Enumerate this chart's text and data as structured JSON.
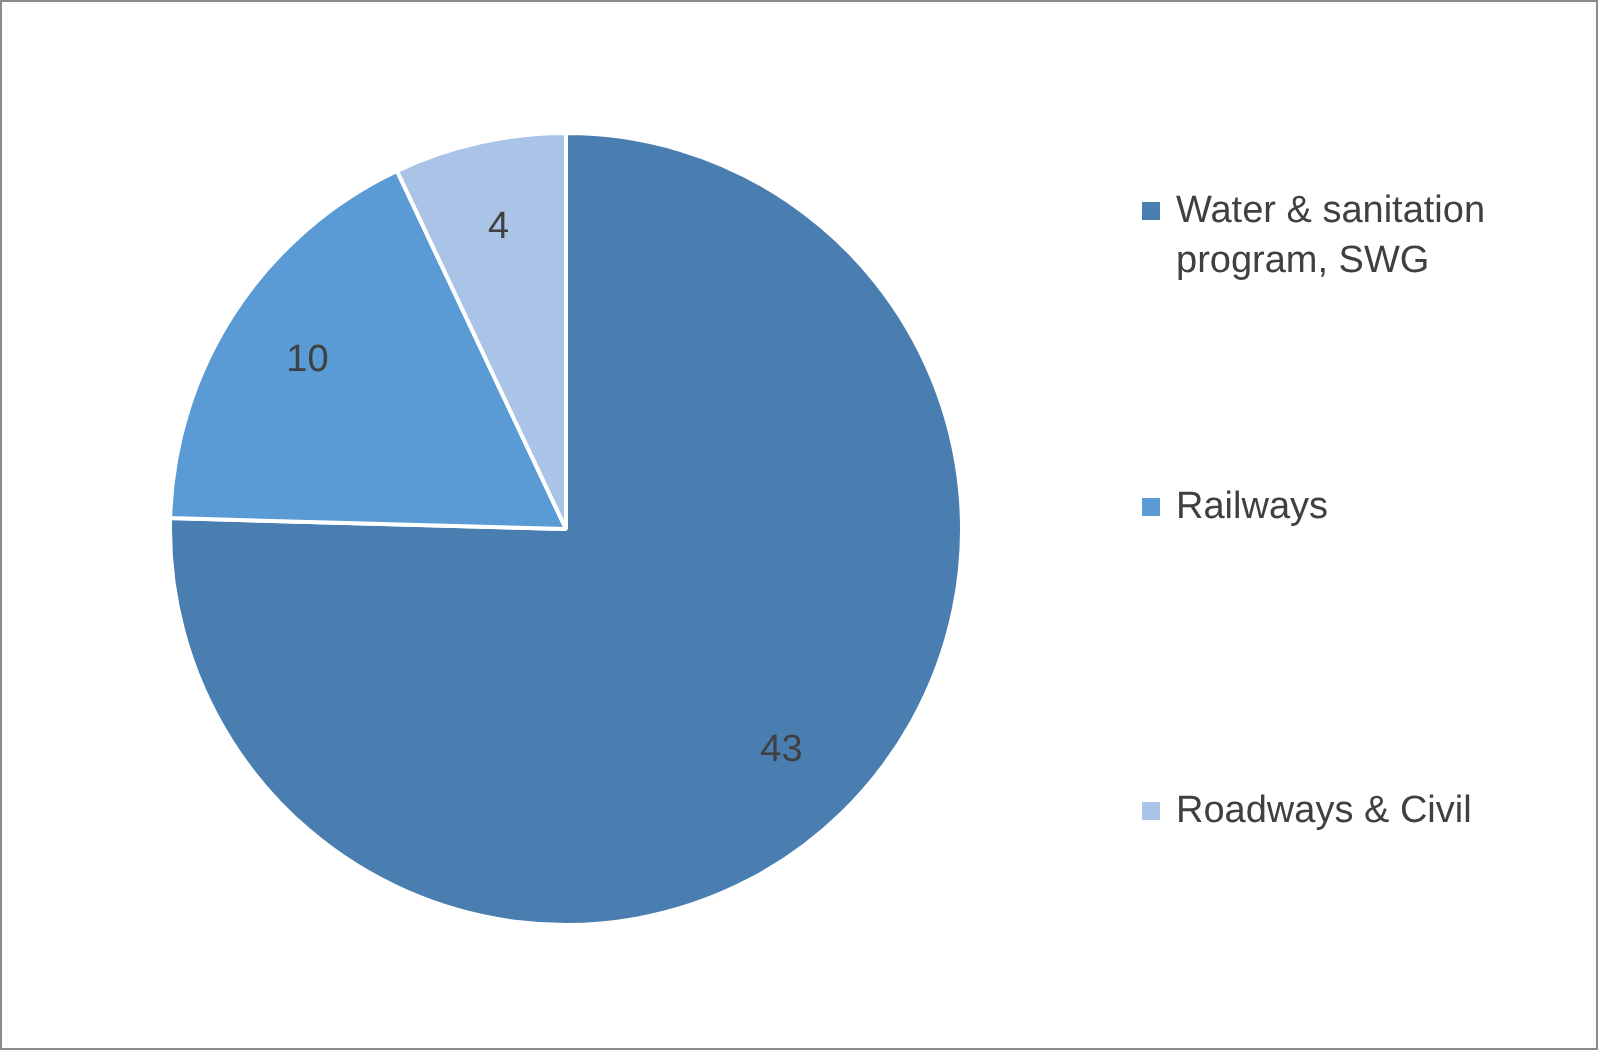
{
  "chart_data": {
    "type": "pie",
    "categories": [
      "Water & sanitation program, SWG",
      "Railways",
      "Roadways & Civil"
    ],
    "values": [
      43,
      10,
      4
    ],
    "colors": [
      "#4a7eb0",
      "#5b9bd5",
      "#a9c4e6"
    ],
    "data_labels": true,
    "legend": "right"
  }
}
